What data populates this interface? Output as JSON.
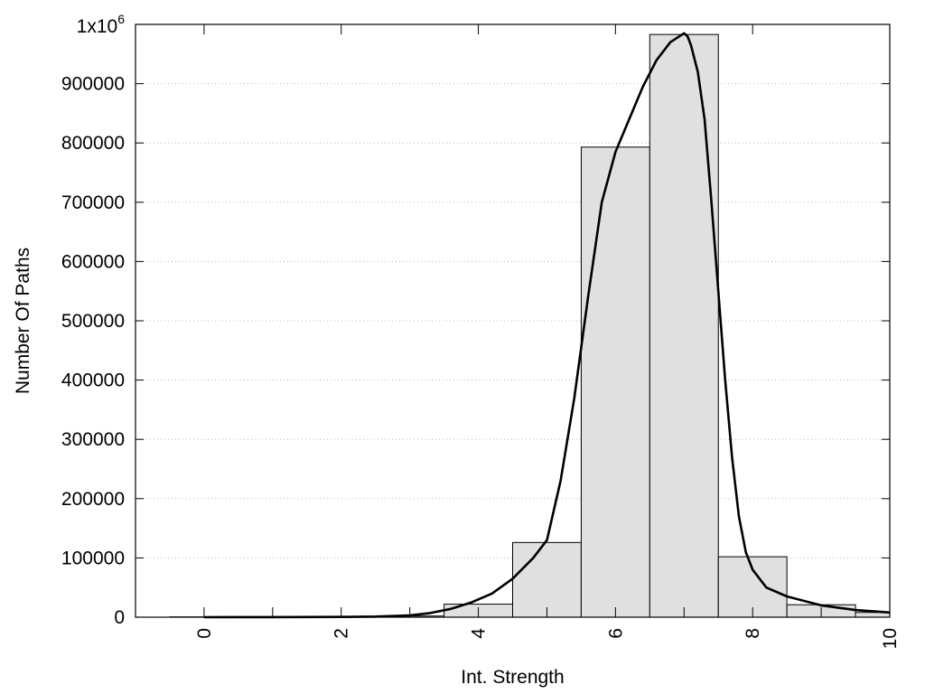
{
  "chart_data": {
    "type": "bar",
    "title": "",
    "xlabel": "Int. Strength",
    "ylabel": "Number Of Paths",
    "xlim": [
      -1,
      10
    ],
    "ylim": [
      0,
      1000000
    ],
    "x_ticks": [
      0,
      2,
      4,
      6,
      8,
      10
    ],
    "x_tick_labels": [
      "0",
      "2",
      "4",
      "6",
      "8",
      "10"
    ],
    "y_ticks": [
      0,
      100000,
      200000,
      300000,
      400000,
      500000,
      600000,
      700000,
      800000,
      900000
    ],
    "y_tick_labels": [
      "0",
      "100000",
      "200000",
      "300000",
      "400000",
      "500000",
      "600000",
      "700000",
      "800000",
      "900000"
    ],
    "y_top_label": {
      "base": "1x10",
      "exponent": "6"
    },
    "grid": {
      "y": true,
      "x": false,
      "style": "dotted"
    },
    "bar_width": 1,
    "x": [
      0,
      1,
      2,
      3,
      4,
      5,
      6,
      7,
      8,
      9,
      10
    ],
    "values": [
      500,
      800,
      1200,
      2000,
      22000,
      126000,
      793000,
      983000,
      102000,
      21000,
      8000
    ],
    "fit_curve": {
      "x": [
        0,
        1,
        2,
        2.5,
        3,
        3.3,
        3.6,
        3.9,
        4.2,
        4.5,
        4.8,
        5.0,
        5.2,
        5.4,
        5.6,
        5.8,
        6.0,
        6.2,
        6.4,
        6.6,
        6.8,
        7.0,
        7.05,
        7.1,
        7.2,
        7.3,
        7.4,
        7.5,
        7.6,
        7.7,
        7.8,
        7.9,
        8.0,
        8.2,
        8.5,
        9.0,
        9.5,
        10.0
      ],
      "y": [
        0,
        100,
        500,
        1000,
        3000,
        7000,
        14000,
        25000,
        40000,
        65000,
        100000,
        130000,
        230000,
        370000,
        540000,
        700000,
        785000,
        840000,
        895000,
        940000,
        970000,
        985000,
        980000,
        965000,
        920000,
        840000,
        700000,
        550000,
        400000,
        270000,
        170000,
        110000,
        80000,
        50000,
        35000,
        20000,
        12000,
        8000
      ]
    }
  }
}
